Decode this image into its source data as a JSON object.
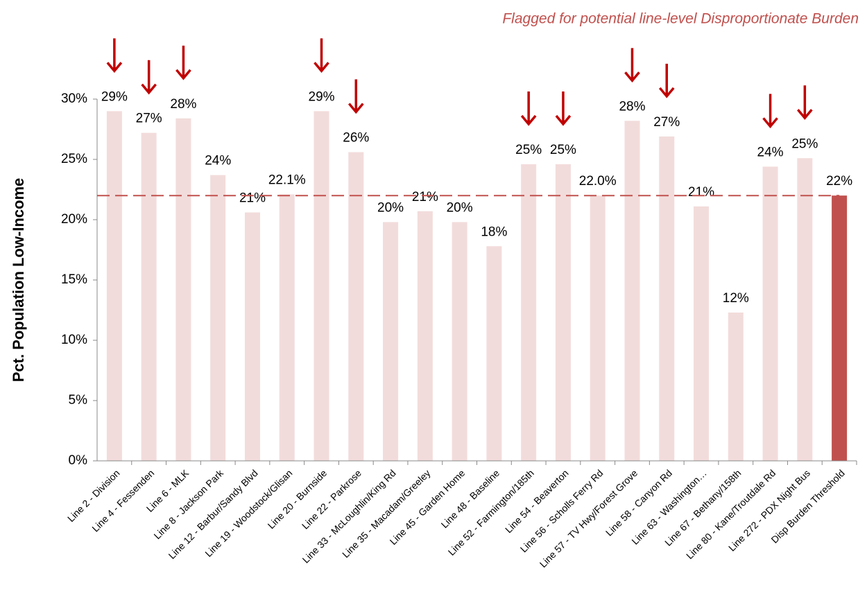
{
  "chart_data": {
    "type": "bar",
    "annotation": "Flagged for potential line-level Disproportionate Burden",
    "ylabel": "Pct. Population Low-Income",
    "categories": [
      "Line 2 - Division",
      "Line 4 - Fessenden",
      "Line 6 - MLK",
      "Line 8 - Jackson Park",
      "Line 12 - Barbur/Sandy Blvd",
      "Line 19 - Woodstock/Glisan",
      "Line 20 - Burnside",
      "Line 22 - Parkrose",
      "Line 33 - McLoughlin/King Rd",
      "Line 35 - Macadam/Greeley",
      "Line 45 - Garden Home",
      "Line 48 - Baseline",
      "Line 52 - Farmington/185th",
      "Line 54 - Beaverton",
      "Line 56 - Scholls Ferry Rd",
      "Line 57 - TV Hwy/Forest Grove",
      "Line 58 - Canyon Rd",
      "Line 63 - Washington…",
      "Line 67 - Bethany/158th",
      "Line 80 - Kane/Troutdale Rd",
      "Line 272 - PDX Night Bus",
      "Disp Burden Threshold"
    ],
    "values": [
      29.0,
      27.2,
      28.4,
      23.7,
      20.6,
      22.1,
      29.0,
      25.6,
      19.8,
      20.7,
      19.8,
      17.8,
      24.6,
      24.6,
      22.0,
      28.2,
      26.9,
      21.1,
      12.3,
      24.4,
      25.1,
      22.0
    ],
    "value_labels": [
      "29%",
      "27%",
      "28%",
      "24%",
      "21%",
      "22.1%",
      "29%",
      "26%",
      "20%",
      "21%",
      "20%",
      "18%",
      "25%",
      "25%",
      "22.0%",
      "28%",
      "27%",
      "21%",
      "12%",
      "24%",
      "25%",
      "22%"
    ],
    "colors": [
      "#f2dcdb",
      "#f2dcdb",
      "#f2dcdb",
      "#f2dcdb",
      "#f2dcdb",
      "#f2dcdb",
      "#f2dcdb",
      "#f2dcdb",
      "#f2dcdb",
      "#f2dcdb",
      "#f2dcdb",
      "#f2dcdb",
      "#f2dcdb",
      "#f2dcdb",
      "#f2dcdb",
      "#f2dcdb",
      "#f2dcdb",
      "#f2dcdb",
      "#f2dcdb",
      "#f2dcdb",
      "#f2dcdb",
      "#c0504d"
    ],
    "flagged": [
      true,
      true,
      true,
      false,
      false,
      false,
      true,
      true,
      false,
      false,
      false,
      false,
      true,
      true,
      false,
      true,
      true,
      false,
      false,
      true,
      true,
      false
    ],
    "flag_color": "#c00000",
    "threshold_line": 22.0,
    "threshold_color": "#c0504d",
    "ylim": [
      0,
      30
    ],
    "yticks": [
      {
        "value": 0,
        "label": "0%"
      },
      {
        "value": 5,
        "label": "5%"
      },
      {
        "value": 10,
        "label": "10%"
      },
      {
        "value": 15,
        "label": "15%"
      },
      {
        "value": 20,
        "label": "20%"
      },
      {
        "value": 25,
        "label": "25%"
      },
      {
        "value": 30,
        "label": "30%"
      }
    ],
    "grid": false
  }
}
